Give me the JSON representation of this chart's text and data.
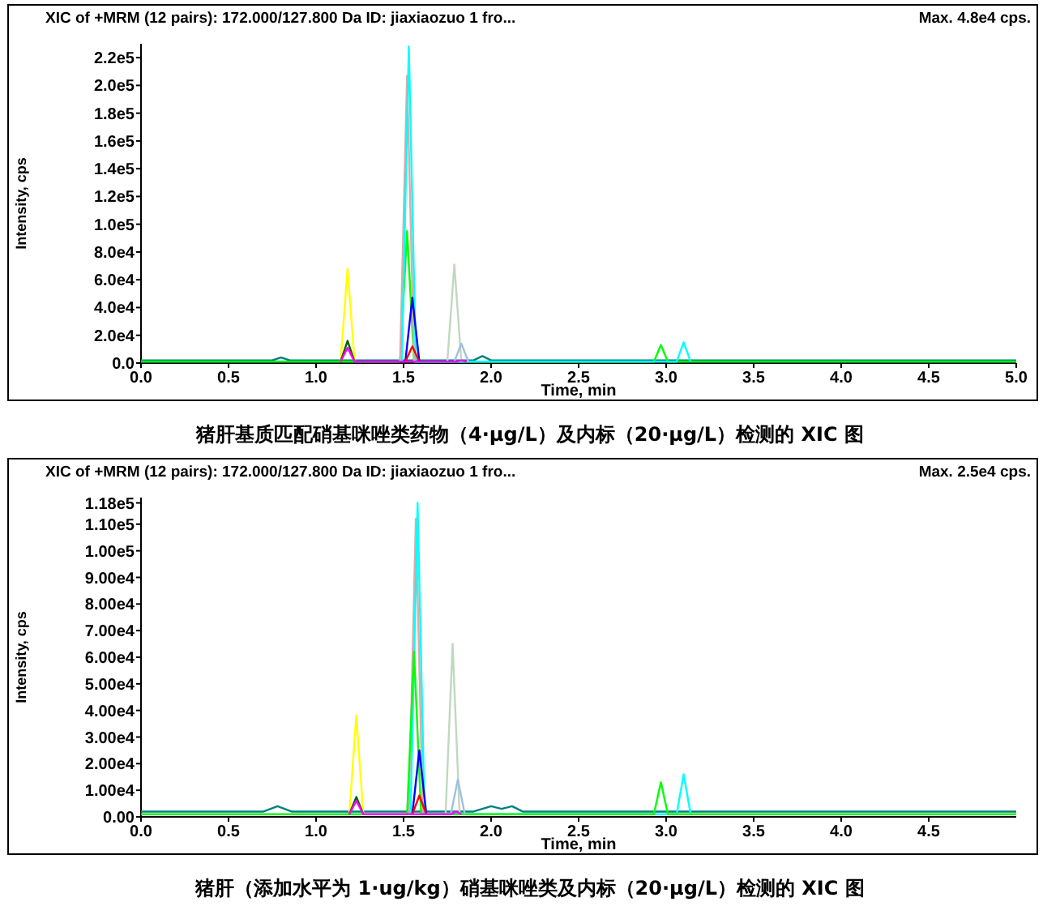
{
  "chart_data": [
    {
      "type": "line",
      "title": "XIC of +MRM (12 pairs): 172.000/127.800 Da ID: jiaxiaozuo 1 fro...",
      "subtitle": "Max. 4.8e4 cps.",
      "xlabel": "Time, min",
      "ylabel": "Intensity, cps",
      "annotations": [
        "猪肝基质匹配硝基咪唑类药物（4·μg/L）及内标（20·μg/L）检测的 XIC 图"
      ],
      "xlim": [
        0,
        5
      ],
      "ylim": [
        0,
        230000
      ],
      "xticks": [
        {
          "value": 0,
          "label": "0.0"
        },
        0.5,
        {
          "value": 1,
          "label": "1.0"
        },
        1.5,
        {
          "value": 2,
          "label": "2.0"
        },
        2.5,
        {
          "value": 3,
          "label": "3.0"
        },
        3.5,
        {
          "value": 4,
          "label": "4.0"
        },
        4.5,
        {
          "value": 5,
          "label": "5.0"
        }
      ],
      "yticks": [
        {
          "value": 0,
          "label": "0.0"
        },
        {
          "value": 20000,
          "label": "2.0e4"
        },
        {
          "value": 40000,
          "label": "4.0e4"
        },
        {
          "value": 60000,
          "label": "6.0e4"
        },
        {
          "value": 80000,
          "label": "8.0e4"
        },
        {
          "value": 100000,
          "label": "1.0e5"
        },
        {
          "value": 120000,
          "label": "1.2e5"
        },
        {
          "value": 140000,
          "label": "1.4e5"
        },
        {
          "value": 160000,
          "label": "1.6e5"
        },
        {
          "value": 180000,
          "label": "1.8e5"
        },
        {
          "value": 200000,
          "label": "2.0e5"
        },
        {
          "value": 220000,
          "label": "2.2e5"
        }
      ],
      "series": [
        {
          "color": "#008080",
          "x": [
            0,
            0.75,
            0.8,
            0.85,
            1.9,
            1.95,
            2.0,
            5
          ],
          "values": [
            2000,
            2000,
            4000,
            2000,
            2000,
            5000,
            2000,
            2000
          ]
        },
        {
          "color": "#00ff00",
          "x": [
            0,
            1.48,
            1.52,
            1.56,
            2.93,
            2.97,
            3.01,
            5
          ],
          "values": [
            1000,
            1000,
            95000,
            1000,
            1000,
            13000,
            1000,
            1000
          ]
        },
        {
          "color": "#ffff00",
          "x": [
            1.14,
            1.18,
            1.22
          ],
          "values": [
            1000,
            68000,
            1000
          ]
        },
        {
          "color": "#e0a8a8",
          "x": [
            1.48,
            1.52,
            1.56
          ],
          "values": [
            1000,
            207000,
            1000
          ]
        },
        {
          "color": "#00ffff",
          "x": [
            1.49,
            1.53,
            1.57,
            3.06,
            3.1,
            3.14
          ],
          "values": [
            1000,
            228000,
            1000,
            1000,
            15000,
            1000
          ]
        },
        {
          "color": "#0000ff",
          "x": [
            1.51,
            1.55,
            1.59
          ],
          "values": [
            1000,
            47000,
            1000
          ]
        },
        {
          "color": "#c0d8c0",
          "x": [
            1.75,
            1.79,
            1.83
          ],
          "values": [
            1000,
            71000,
            1000
          ]
        },
        {
          "color": "#a0c0e0",
          "x": [
            1.79,
            1.83,
            1.87
          ],
          "values": [
            1000,
            14000,
            1000
          ]
        },
        {
          "color": "#006400",
          "x": [
            1.14,
            1.18,
            1.22
          ],
          "values": [
            1000,
            16000,
            1000
          ]
        },
        {
          "color": "#ff0000",
          "x": [
            1.51,
            1.55,
            1.59
          ],
          "values": [
            1000,
            12000,
            1000
          ]
        },
        {
          "color": "#ff00ff",
          "x": [
            1.14,
            1.18,
            1.22,
            1.8,
            1.83,
            1.86
          ],
          "values": [
            1000,
            11000,
            1000,
            1000,
            2000,
            1000
          ]
        }
      ]
    },
    {
      "type": "line",
      "title": "XIC of +MRM (12 pairs): 172.000/127.800 Da ID: jiaxiaozuo 1 fro...",
      "subtitle": "Max. 2.5e4 cps.",
      "xlabel": "Time, min",
      "ylabel": "Intensity, cps",
      "annotations": [
        "猪肝（添加水平为 1·ug/kg）硝基咪唑类及内标（20·μg/L）检测的 XIC 图"
      ],
      "xlim": [
        0,
        5
      ],
      "ylim": [
        0,
        120000
      ],
      "xticks": [
        {
          "value": 0,
          "label": "0.0"
        },
        0.5,
        {
          "value": 1,
          "label": "1.0"
        },
        1.5,
        {
          "value": 2,
          "label": "2.0"
        },
        2.5,
        {
          "value": 3,
          "label": "3.0"
        },
        3.5,
        {
          "value": 4,
          "label": "4.0"
        },
        4.5
      ],
      "yticks": [
        {
          "value": 0,
          "label": "0.00"
        },
        {
          "value": 10000,
          "label": "1.00e4"
        },
        {
          "value": 20000,
          "label": "2.00e4"
        },
        {
          "value": 30000,
          "label": "3.00e4"
        },
        {
          "value": 40000,
          "label": "4.00e4"
        },
        {
          "value": 50000,
          "label": "5.00e4"
        },
        {
          "value": 60000,
          "label": "6.00e4"
        },
        {
          "value": 70000,
          "label": "7.00e4"
        },
        {
          "value": 80000,
          "label": "8.00e4"
        },
        {
          "value": 90000,
          "label": "9.00e4"
        },
        {
          "value": 100000,
          "label": "1.00e5"
        },
        {
          "value": 110000,
          "label": "1.10e5"
        },
        {
          "value": 118000,
          "label": "1.18e5"
        }
      ],
      "series": [
        {
          "color": "#008080",
          "x": [
            0,
            0.7,
            0.78,
            0.86,
            1.9,
            2.0,
            2.06,
            2.12,
            2.18,
            5
          ],
          "values": [
            2000,
            2000,
            4000,
            2000,
            2000,
            4000,
            3000,
            4000,
            2000,
            2000
          ]
        },
        {
          "color": "#ffff00",
          "x": [
            1.19,
            1.23,
            1.27
          ],
          "values": [
            1000,
            38000,
            1000
          ]
        },
        {
          "color": "#e0a8a8",
          "x": [
            1.53,
            1.57,
            1.61
          ],
          "values": [
            1000,
            112000,
            1000
          ]
        },
        {
          "color": "#00ffff",
          "x": [
            1.54,
            1.58,
            1.62,
            3.06,
            3.1,
            3.14
          ],
          "values": [
            1000,
            118000,
            1000,
            1000,
            16000,
            1000
          ]
        },
        {
          "color": "#00ff00",
          "x": [
            0,
            1.52,
            1.56,
            1.6,
            2.93,
            2.97,
            3.01,
            5
          ],
          "values": [
            1000,
            1000,
            62000,
            1000,
            1000,
            13000,
            1000,
            1000
          ]
        },
        {
          "color": "#0000ff",
          "x": [
            1.55,
            1.59,
            1.63
          ],
          "values": [
            1000,
            25000,
            1000
          ]
        },
        {
          "color": "#c0d8c0",
          "x": [
            1.74,
            1.78,
            1.82
          ],
          "values": [
            1000,
            65000,
            1000
          ]
        },
        {
          "color": "#a0c0e0",
          "x": [
            1.77,
            1.81,
            1.85
          ],
          "values": [
            1000,
            14000,
            1000
          ]
        },
        {
          "color": "#006400",
          "x": [
            1.19,
            1.23,
            1.27
          ],
          "values": [
            1000,
            7500,
            1000
          ]
        },
        {
          "color": "#ff0000",
          "x": [
            1.55,
            1.59,
            1.63
          ],
          "values": [
            1000,
            8000,
            1000
          ]
        },
        {
          "color": "#ff00ff",
          "x": [
            1.19,
            1.23,
            1.27,
            1.77,
            1.8,
            1.83
          ],
          "values": [
            1000,
            6000,
            1000,
            1000,
            2000,
            1000
          ]
        }
      ]
    }
  ]
}
